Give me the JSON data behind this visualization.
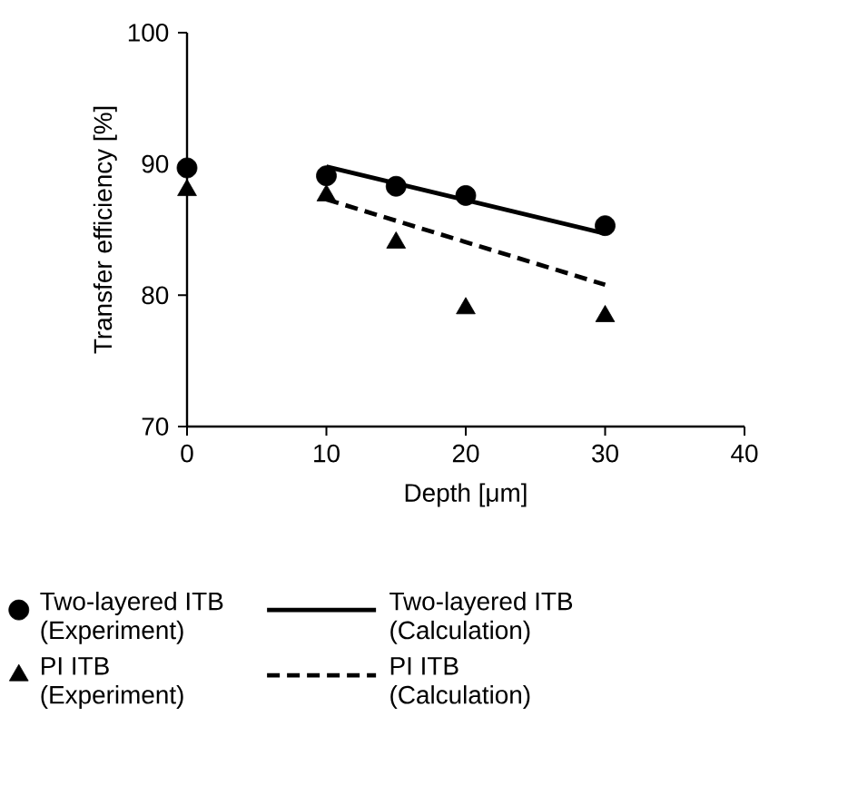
{
  "chart_data": {
    "type": "scatter",
    "xlabel": "Depth [μm]",
    "ylabel": "Transfer efficiency [%]",
    "xlim": [
      0,
      40
    ],
    "xticks": [
      0,
      10,
      20,
      30,
      40
    ],
    "ylim": [
      70,
      100
    ],
    "yticks": [
      70,
      80,
      90,
      100
    ],
    "legend": "bottom",
    "series": [
      {
        "name": "Two-layered ITB (Experiment)",
        "marker": "circle",
        "color": "#000000",
        "x": [
          0,
          10,
          15,
          20,
          30
        ],
        "values": [
          89.7,
          89.1,
          88.3,
          87.6,
          85.3
        ]
      },
      {
        "name": "Two-layered ITB (Calculation)",
        "type": "line",
        "marker": "none",
        "line_style": "solid",
        "color": "#000000",
        "x": [
          10,
          30
        ],
        "values": [
          89.8,
          84.7
        ]
      },
      {
        "name": "PI ITB (Experiment)",
        "marker": "triangle",
        "color": "#000000",
        "x": [
          0,
          10,
          15,
          20,
          30
        ],
        "values": [
          88.0,
          87.6,
          84.0,
          79.0,
          78.4
        ]
      },
      {
        "name": "PI ITB (Calculation)",
        "type": "line",
        "marker": "none",
        "line_style": "dashed",
        "color": "#000000",
        "x": [
          10,
          30
        ],
        "values": [
          87.3,
          80.8
        ]
      }
    ]
  }
}
